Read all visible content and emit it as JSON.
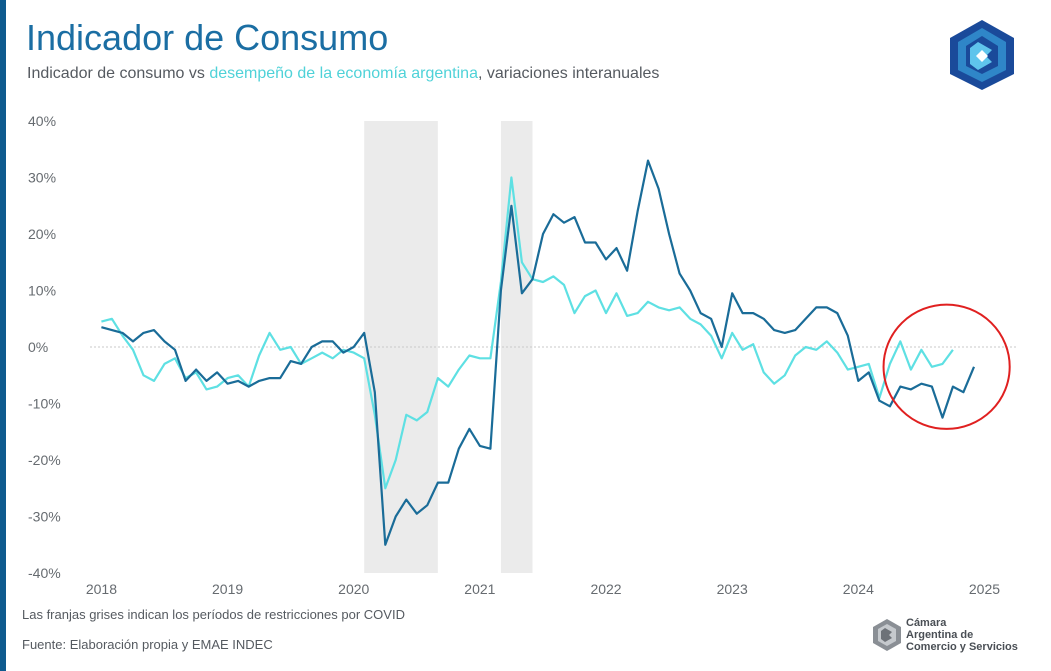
{
  "header": {
    "title": "Indicador de Consumo",
    "subtitle_pre": "Indicador de consumo vs ",
    "subtitle_highlight": "desempeño de la economía argentina",
    "subtitle_post": ", variaciones interanuales"
  },
  "footer": {
    "note": "Las franjas grises indican los períodos de restricciones por COVID",
    "source": "Fuente: Elaboración propia y EMAE INDEC",
    "org_line1": "Cámara",
    "org_line2": "Argentina de",
    "org_line3": "Comercio y Servicios"
  },
  "colors": {
    "accent": "#0e5a8e",
    "title": "#1b6ea3",
    "consumo": "#1a6c98",
    "emae": "#5ee0e3",
    "shade": "#ebebeb",
    "highlight_circle": "#e02020"
  },
  "icons": [
    "cac-logo-icon",
    "cac-logo-small-icon"
  ],
  "chart_data": {
    "type": "line",
    "title": "Indicador de Consumo",
    "xlabel": "",
    "ylabel": "",
    "ylim": [
      -40,
      40
    ],
    "yticks": [
      "40%",
      "30%",
      "20%",
      "10%",
      "0%",
      "-10%",
      "-20%",
      "-30%",
      "-40%"
    ],
    "ytick_values": [
      40,
      30,
      20,
      10,
      0,
      -10,
      -20,
      -30,
      -40
    ],
    "xticks": [
      "2018",
      "2019",
      "2020",
      "2021",
      "2022",
      "2023",
      "2024",
      "2025"
    ],
    "xtick_values": [
      2018,
      2019,
      2020,
      2021,
      2022,
      2023,
      2024,
      2025
    ],
    "xlim": [
      2017.83,
      2025.25
    ],
    "zero_line": true,
    "shaded_periods": [
      [
        2020.083,
        2020.667
      ],
      [
        2021.167,
        2021.417
      ]
    ],
    "highlight_circle": {
      "x": 2024.7,
      "y": -3.5,
      "rx": 0.5,
      "ry": 11
    },
    "series": [
      {
        "key": "consumo",
        "color": "#1a6c98",
        "x": [
          2018.0,
          2018.083,
          2018.167,
          2018.25,
          2018.333,
          2018.417,
          2018.5,
          2018.583,
          2018.667,
          2018.75,
          2018.833,
          2018.917,
          2019.0,
          2019.083,
          2019.167,
          2019.25,
          2019.333,
          2019.417,
          2019.5,
          2019.583,
          2019.667,
          2019.75,
          2019.833,
          2019.917,
          2020.0,
          2020.083,
          2020.167,
          2020.25,
          2020.333,
          2020.417,
          2020.5,
          2020.583,
          2020.667,
          2020.75,
          2020.833,
          2020.917,
          2021.0,
          2021.083,
          2021.167,
          2021.25,
          2021.333,
          2021.417,
          2021.5,
          2021.583,
          2021.667,
          2021.75,
          2021.833,
          2021.917,
          2022.0,
          2022.083,
          2022.167,
          2022.25,
          2022.333,
          2022.417,
          2022.5,
          2022.583,
          2022.667,
          2022.75,
          2022.833,
          2022.917,
          2023.0,
          2023.083,
          2023.167,
          2023.25,
          2023.333,
          2023.417,
          2023.5,
          2023.583,
          2023.667,
          2023.75,
          2023.833,
          2023.917,
          2024.0,
          2024.083,
          2024.167,
          2024.25,
          2024.333,
          2024.417,
          2024.5,
          2024.583,
          2024.667,
          2024.75,
          2024.833,
          2024.917
        ],
        "values": [
          3.5,
          3.0,
          2.5,
          1.0,
          2.5,
          3.0,
          1.0,
          -0.5,
          -6.0,
          -4.0,
          -6.0,
          -4.5,
          -6.5,
          -6.0,
          -7.0,
          -6.0,
          -5.5,
          -5.5,
          -2.5,
          -3.0,
          0.0,
          1.0,
          1.0,
          -1.0,
          0.0,
          2.5,
          -8.0,
          -35.0,
          -30.0,
          -27.0,
          -29.5,
          -28.0,
          -24.0,
          -24.0,
          -18.0,
          -14.5,
          -17.5,
          -18.0,
          10.0,
          25.0,
          9.5,
          12.0,
          20.0,
          23.5,
          22.0,
          23.0,
          18.5,
          18.5,
          15.5,
          17.5,
          13.5,
          24.0,
          33.0,
          28.0,
          20.0,
          13.0,
          10.0,
          6.0,
          5.0,
          0.0,
          9.5,
          6.0,
          6.0,
          5.0,
          3.0,
          2.5,
          3.0,
          5.0,
          7.0,
          7.0,
          6.0,
          2.0,
          -6.0,
          -4.5,
          -9.5,
          -10.5,
          -7.0,
          -7.5,
          -6.5,
          -7.0,
          -12.5,
          -7.0,
          -8.0,
          -3.5
        ]
      },
      {
        "key": "emae",
        "color": "#5ee0e3",
        "x": [
          2018.0,
          2018.083,
          2018.167,
          2018.25,
          2018.333,
          2018.417,
          2018.5,
          2018.583,
          2018.667,
          2018.75,
          2018.833,
          2018.917,
          2019.0,
          2019.083,
          2019.167,
          2019.25,
          2019.333,
          2019.417,
          2019.5,
          2019.583,
          2019.667,
          2019.75,
          2019.833,
          2019.917,
          2020.0,
          2020.083,
          2020.167,
          2020.25,
          2020.333,
          2020.417,
          2020.5,
          2020.583,
          2020.667,
          2020.75,
          2020.833,
          2020.917,
          2021.0,
          2021.083,
          2021.167,
          2021.25,
          2021.333,
          2021.417,
          2021.5,
          2021.583,
          2021.667,
          2021.75,
          2021.833,
          2021.917,
          2022.0,
          2022.083,
          2022.167,
          2022.25,
          2022.333,
          2022.417,
          2022.5,
          2022.583,
          2022.667,
          2022.75,
          2022.833,
          2022.917,
          2023.0,
          2023.083,
          2023.167,
          2023.25,
          2023.333,
          2023.417,
          2023.5,
          2023.583,
          2023.667,
          2023.75,
          2023.833,
          2023.917,
          2024.0,
          2024.083,
          2024.167,
          2024.25,
          2024.333,
          2024.417,
          2024.5,
          2024.583,
          2024.667,
          2024.75
        ],
        "values": [
          4.5,
          5.0,
          2.0,
          -0.5,
          -5.0,
          -6.0,
          -3.0,
          -2.0,
          -5.5,
          -4.5,
          -7.5,
          -7.0,
          -5.5,
          -5.0,
          -7.0,
          -1.5,
          2.5,
          -0.5,
          0.0,
          -3.0,
          -2.0,
          -1.0,
          -2.0,
          -0.5,
          -1.0,
          -2.0,
          -12.0,
          -25.0,
          -20.0,
          -12.0,
          -13.0,
          -11.5,
          -5.5,
          -7.0,
          -4.0,
          -1.5,
          -2.0,
          -2.0,
          11.5,
          30.0,
          15.0,
          12.0,
          11.5,
          12.5,
          11.0,
          6.0,
          9.0,
          10.0,
          6.0,
          9.5,
          5.5,
          6.0,
          8.0,
          7.0,
          6.5,
          7.0,
          5.0,
          4.0,
          2.0,
          -2.0,
          2.5,
          -0.5,
          0.5,
          -4.5,
          -6.5,
          -5.0,
          -1.5,
          0.0,
          -0.5,
          1.0,
          -1.0,
          -4.0,
          -3.5,
          -3.0,
          -9.0,
          -3.0,
          1.0,
          -4.0,
          -0.5,
          -3.5,
          -3.0,
          -0.5
        ]
      }
    ]
  }
}
